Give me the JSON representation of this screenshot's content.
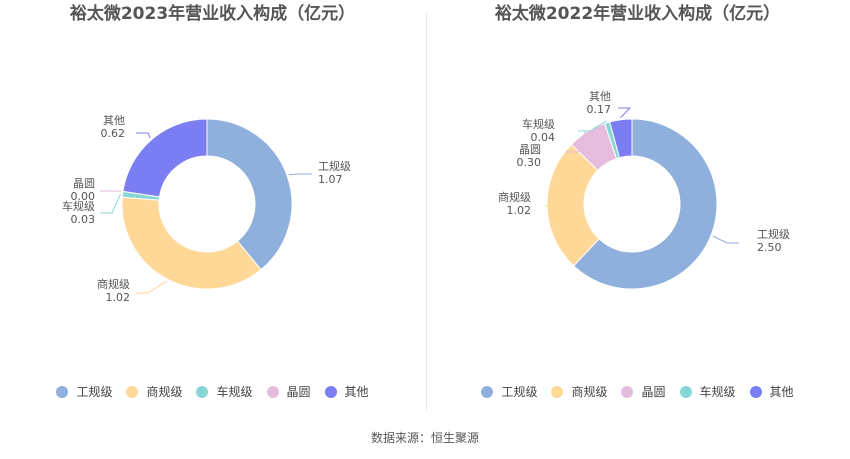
{
  "colors": {
    "工规级": "#8fb0dc",
    "商规级": "#ffd898",
    "车规级": "#88d6d6",
    "晶圆": "#e6bcdc",
    "其他": "#7b7ef2"
  },
  "source": "数据来源：恒生聚源",
  "chart_data": [
    {
      "type": "pie",
      "title": "裕太微2023年营业收入构成（亿元）",
      "slices": [
        {
          "name": "工规级",
          "value": 1.07,
          "label": "1.07"
        },
        {
          "name": "商规级",
          "value": 1.02,
          "label": "1.02"
        },
        {
          "name": "车规级",
          "value": 0.03,
          "label": "0.03"
        },
        {
          "name": "晶圆",
          "value": 0.0,
          "label": "0.00"
        },
        {
          "name": "其他",
          "value": 0.62,
          "label": "0.62"
        }
      ],
      "legend": [
        "工规级",
        "商规级",
        "车规级",
        "晶圆",
        "其他"
      ]
    },
    {
      "type": "pie",
      "title": "裕太微2022年营业收入构成（亿元）",
      "slices": [
        {
          "name": "工规级",
          "value": 2.5,
          "label": "2.50"
        },
        {
          "name": "商规级",
          "value": 1.02,
          "label": "1.02"
        },
        {
          "name": "晶圆",
          "value": 0.3,
          "label": "0.30"
        },
        {
          "name": "车规级",
          "value": 0.04,
          "label": "0.04"
        },
        {
          "name": "其他",
          "value": 0.17,
          "label": "0.17"
        }
      ],
      "legend": [
        "工规级",
        "商规级",
        "晶圆",
        "车规级",
        "其他"
      ]
    }
  ]
}
